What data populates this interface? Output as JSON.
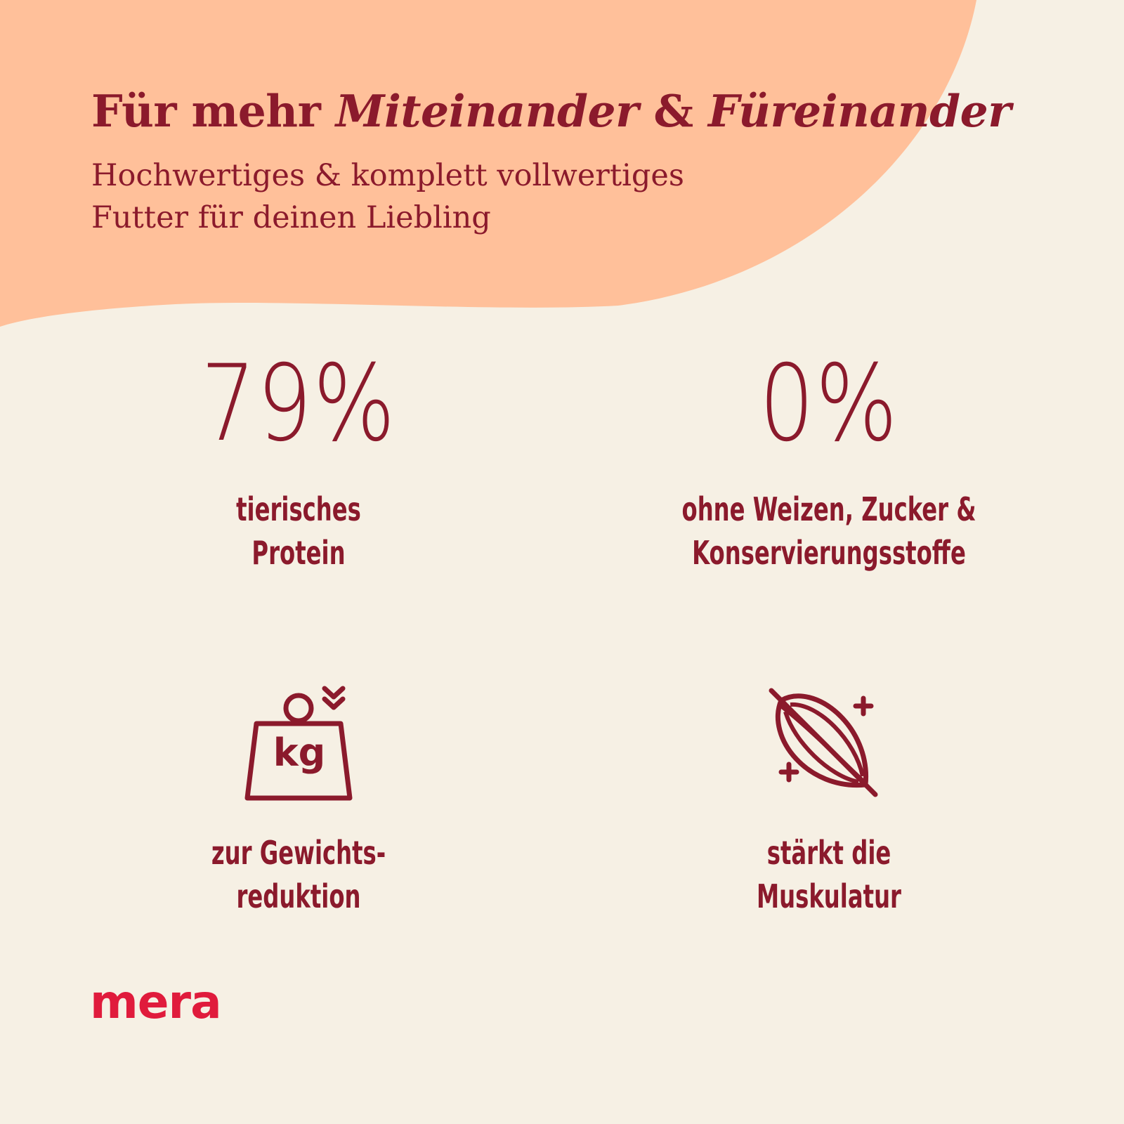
{
  "colors": {
    "background": "#f6f0e4",
    "blob": "#ffc09a",
    "text": "#8b1a2c",
    "brand": "#e01b3c"
  },
  "header": {
    "headline_plain": "Für mehr ",
    "headline_em1": "Miteinander",
    "headline_amp": " & ",
    "headline_em2": "Füreinander",
    "subline_1": "Hochwertiges & komplett vollwertiges",
    "subline_2": "Futter für deinen Liebling"
  },
  "features": [
    {
      "value": "79%",
      "caption_1": "tierisches",
      "caption_2": "Protein"
    },
    {
      "value": "0%",
      "caption_1": "ohne Weizen, Zucker &",
      "caption_2": "Konservierungsstoffe"
    },
    {
      "icon": "weight-kg-down-icon",
      "icon_text": "kg",
      "caption_1": "zur Gewichts-",
      "caption_2": "reduktion"
    },
    {
      "icon": "muscle-plus-icon",
      "caption_1": "stärkt die",
      "caption_2": "Muskulatur"
    }
  ],
  "brand": {
    "logo": "mera"
  }
}
